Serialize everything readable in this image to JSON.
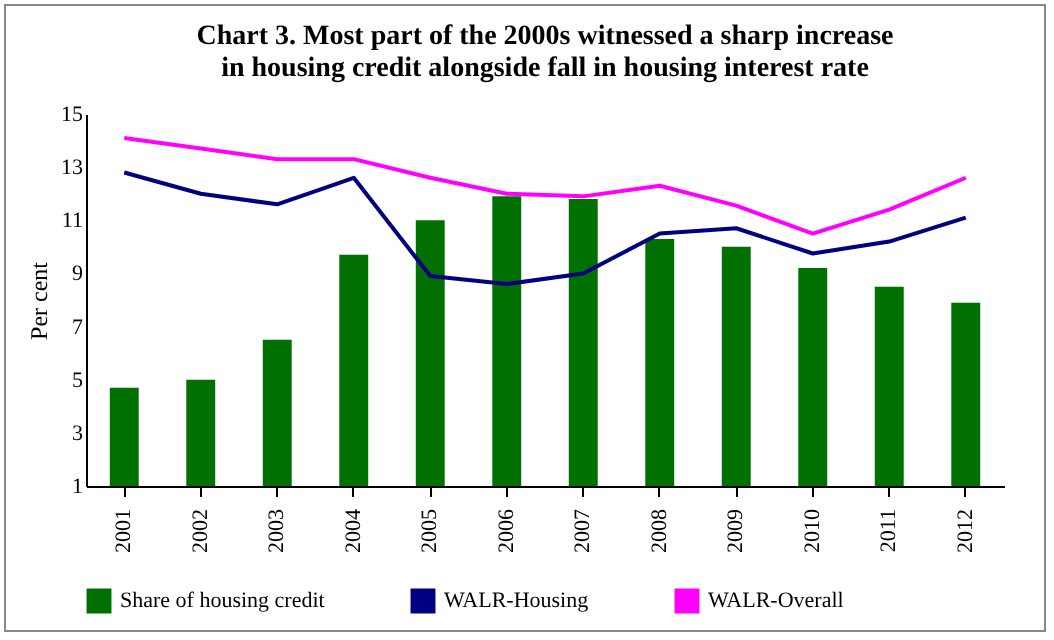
{
  "chart_data": {
    "type": "bar",
    "title": "Chart 3. Most part of the 2000s witnessed a sharp increase in housing credit alongside fall in housing interest rate",
    "ylabel": "Per cent",
    "categories": [
      "2001",
      "2002",
      "2003",
      "2004",
      "2005",
      "2006",
      "2007",
      "2008",
      "2009",
      "2010",
      "2011",
      "2012"
    ],
    "series": [
      {
        "name": "Share of housing credit",
        "color": "#007000",
        "values": [
          4.7,
          5.0,
          6.5,
          9.7,
          11.0,
          11.9,
          11.8,
          10.3,
          10.0,
          9.2,
          8.5,
          7.9
        ]
      },
      {
        "name": "WALR-Housing",
        "type": "line",
        "color": "#000080",
        "values": [
          12.8,
          12.0,
          11.6,
          12.6,
          8.9,
          8.6,
          9.0,
          10.5,
          10.7,
          9.75,
          10.2,
          11.1
        ]
      },
      {
        "name": "WALR-Overall",
        "type": "line",
        "color": "#ff00ff",
        "values": [
          14.1,
          13.7,
          13.3,
          13.3,
          12.6,
          12.0,
          11.9,
          12.3,
          11.55,
          10.5,
          11.4,
          12.6
        ]
      }
    ],
    "ylim": [
      1,
      15
    ],
    "yticks": [
      1,
      3,
      5,
      7,
      9,
      11,
      13,
      15
    ],
    "grid": false,
    "legend": "bottom"
  }
}
